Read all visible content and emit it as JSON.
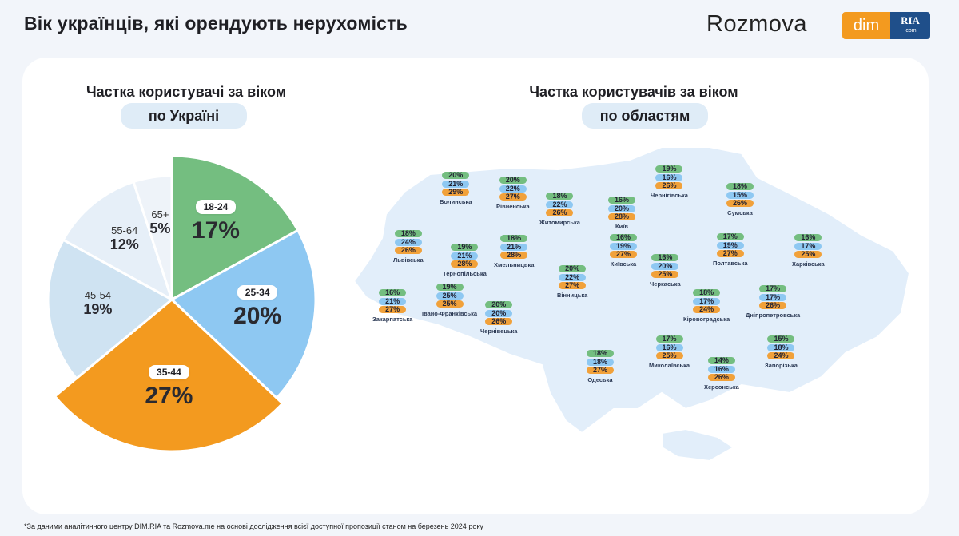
{
  "title": "Вік українців, які орендують нерухомість",
  "logos": {
    "rozmova": "Rozmova",
    "dim": "dim",
    "ria": "RIA",
    "ria_sub": ".com"
  },
  "footnote": "*За даними аналітичного центру DIM.RIA та Rozmova.me на основі дослідження всієї доступної пропозиції станом на березень 2024 року",
  "colors": {
    "g1": "#74be80",
    "g2": "#8ec8f2",
    "g3": "#f39a1f",
    "g4": "#cfe3f2",
    "g5": "#e6eff8",
    "g6": "#eef3f9"
  },
  "chart_data": [
    {
      "type": "pie",
      "title": "Частка користувачі за віком",
      "subtitle": "по Україні",
      "categories": [
        "18-24",
        "25-34",
        "35-44",
        "45-54",
        "55-64",
        "65+"
      ],
      "values": [
        17,
        20,
        27,
        19,
        12,
        5
      ],
      "labels": [
        "17%",
        "20%",
        "27%",
        "19%",
        "12%",
        "5%"
      ]
    },
    {
      "type": "table",
      "title": "Частка користувачів за віком",
      "subtitle": "по областям",
      "series": [
        {
          "name": "Волинська",
          "values": [
            "20%",
            "21%",
            "29%"
          ]
        },
        {
          "name": "Рівненська",
          "values": [
            "20%",
            "22%",
            "27%"
          ]
        },
        {
          "name": "Житомирська",
          "values": [
            "18%",
            "22%",
            "26%"
          ]
        },
        {
          "name": "Київ",
          "values": [
            "16%",
            "20%",
            "28%"
          ]
        },
        {
          "name": "Чернігівська",
          "values": [
            "19%",
            "16%",
            "26%"
          ]
        },
        {
          "name": "Сумська",
          "values": [
            "18%",
            "15%",
            "26%"
          ]
        },
        {
          "name": "Львівська",
          "values": [
            "18%",
            "24%",
            "26%"
          ]
        },
        {
          "name": "Тернопільська",
          "values": [
            "19%",
            "21%",
            "28%"
          ]
        },
        {
          "name": "Хмельницька",
          "values": [
            "18%",
            "21%",
            "28%"
          ]
        },
        {
          "name": "Київська",
          "values": [
            "16%",
            "19%",
            "27%"
          ]
        },
        {
          "name": "Полтавська",
          "values": [
            "17%",
            "19%",
            "27%"
          ]
        },
        {
          "name": "Харківська",
          "values": [
            "16%",
            "17%",
            "25%"
          ]
        },
        {
          "name": "Черкаська",
          "values": [
            "16%",
            "20%",
            "25%"
          ]
        },
        {
          "name": "Вінницька",
          "values": [
            "20%",
            "22%",
            "27%"
          ]
        },
        {
          "name": "Закарпатська",
          "values": [
            "16%",
            "21%",
            "27%"
          ]
        },
        {
          "name": "Івано-Франківська",
          "values": [
            "19%",
            "25%",
            "25%"
          ]
        },
        {
          "name": "Чернівецька",
          "values": [
            "20%",
            "20%",
            "26%"
          ]
        },
        {
          "name": "Кіровоградська",
          "values": [
            "18%",
            "17%",
            "24%"
          ]
        },
        {
          "name": "Дніпропетровська",
          "values": [
            "17%",
            "17%",
            "26%"
          ]
        },
        {
          "name": "Одеська",
          "values": [
            "18%",
            "18%",
            "27%"
          ]
        },
        {
          "name": "Миколаївська",
          "values": [
            "17%",
            "16%",
            "25%"
          ]
        },
        {
          "name": "Херсонська",
          "values": [
            "14%",
            "16%",
            "26%"
          ]
        },
        {
          "name": "Запорізька",
          "values": [
            "15%",
            "18%",
            "24%"
          ]
        }
      ]
    }
  ]
}
